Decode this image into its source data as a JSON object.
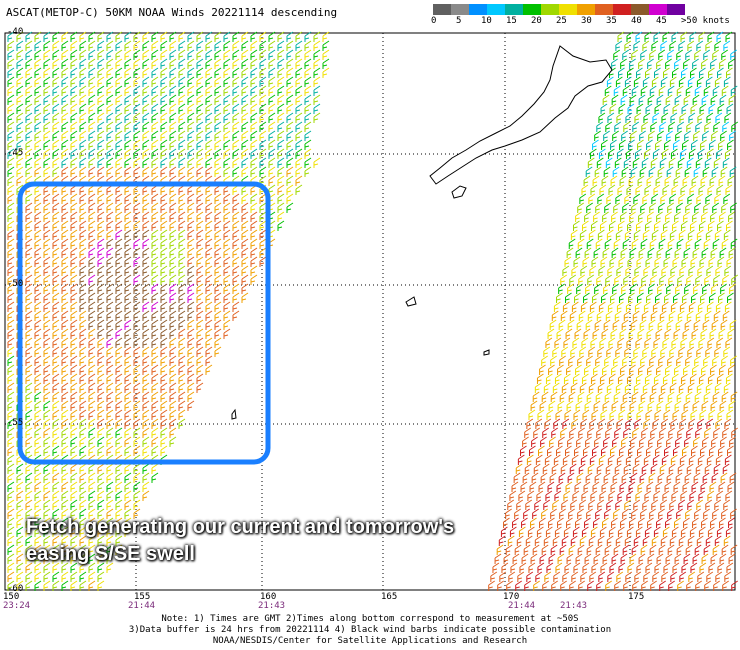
{
  "title": "ASCAT(METOP-C) 50KM NOAA Winds 20221114 descending",
  "legend": {
    "colors": [
      "#606060",
      "#8a8a8a",
      "#0090ff",
      "#00c8ff",
      "#00b0a0",
      "#00c000",
      "#a0d800",
      "#f0e000",
      "#f0a000",
      "#e06020",
      "#d02020",
      "#8b5a2b",
      "#d000d0",
      "#7000a0"
    ],
    "labels": [
      "0",
      "5",
      "10",
      "15",
      "20",
      "25",
      "30",
      "35",
      "40",
      "45",
      ">50 knots"
    ]
  },
  "map": {
    "lat_labels": [
      "-40",
      "-45",
      "-50",
      "-55",
      "-60"
    ],
    "lon_labels": [
      "150",
      "155",
      "160",
      "165",
      "170",
      "175"
    ],
    "time_labels": [
      "23:24",
      "21:44",
      "21:43",
      "21:44",
      "21:43"
    ]
  },
  "annotation": {
    "line1": "Fetch generating our current and tomorrow's",
    "line2": "easing S/SE swell"
  },
  "footer": {
    "line1": "Note: 1) Times are GMT 2)Times along bottom correspond to measurement at ~50S",
    "line2": "3)Data buffer is 24 hrs from 20221114 4) Black wind barbs indicate possible contamination",
    "line3": "NOAA/NESDIS/Center for Satellite Applications and Research"
  }
}
